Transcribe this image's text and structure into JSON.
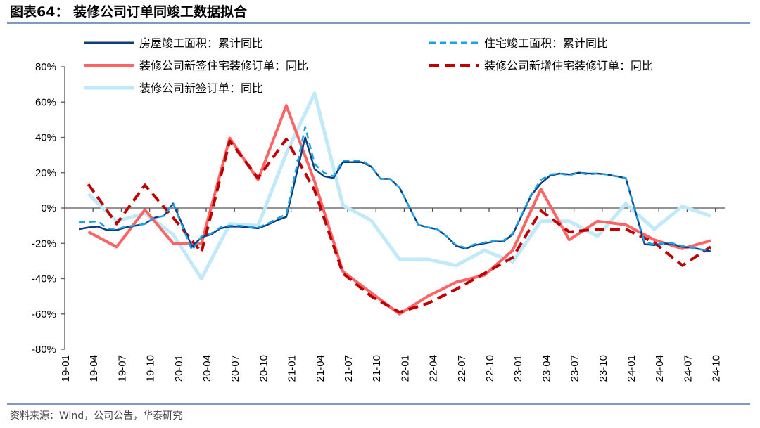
{
  "title": "图表64：  装修公司订单同竣工数据拟合",
  "source": "资料来源：Wind，公司公告，华泰研究",
  "colors": {
    "rule": "#2f5fa0"
  },
  "chart_data": {
    "type": "line",
    "ylim": [
      -80,
      80
    ],
    "yticks": [
      80,
      60,
      40,
      20,
      0,
      -20,
      -40,
      -60,
      -80
    ],
    "ytick_labels": [
      "80%",
      "60%",
      "40%",
      "20%",
      "0%",
      "-20%",
      "-40%",
      "-60%",
      "-80%"
    ],
    "xtick_labels": [
      "19-01",
      "19-04",
      "19-07",
      "19-10",
      "20-01",
      "20-04",
      "20-07",
      "20-10",
      "21-01",
      "21-04",
      "21-07",
      "21-10",
      "22-01",
      "22-04",
      "22-07",
      "22-10",
      "23-01",
      "23-04",
      "23-07",
      "23-10",
      "24-01",
      "24-04",
      "24-07",
      "24-10"
    ],
    "legend_position": "top",
    "grid": false,
    "monthly_x": [
      "19-02",
      "19-03",
      "19-04",
      "19-05",
      "19-06",
      "19-07",
      "19-08",
      "19-09",
      "19-10",
      "19-11",
      "19-12",
      "20-02",
      "20-03",
      "20-04",
      "20-05",
      "20-06",
      "20-07",
      "20-08",
      "20-09",
      "20-10",
      "20-11",
      "20-12",
      "21-02",
      "21-03",
      "21-04",
      "21-05",
      "21-06",
      "21-07",
      "21-08",
      "21-09",
      "21-10",
      "21-11",
      "21-12",
      "22-02",
      "22-03",
      "22-04",
      "22-05",
      "22-06",
      "22-07",
      "22-08",
      "22-09",
      "22-10",
      "22-11",
      "22-12",
      "23-02",
      "23-03",
      "23-04",
      "23-05",
      "23-06",
      "23-07",
      "23-08",
      "23-09",
      "23-10",
      "23-11",
      "23-12",
      "24-02",
      "24-03",
      "24-04",
      "24-05",
      "24-06",
      "24-07",
      "24-08",
      "24-09"
    ],
    "quarterly_x": [
      "19-03",
      "19-06",
      "19-09",
      "19-12",
      "20-03",
      "20-06",
      "20-09",
      "20-12",
      "21-03",
      "21-06",
      "21-09",
      "21-12",
      "22-03",
      "22-06",
      "22-09",
      "22-12",
      "23-03",
      "23-06",
      "23-09",
      "23-12",
      "24-03",
      "24-06",
      "24-09"
    ],
    "series": [
      {
        "name": "房屋竣工面积：累计同比",
        "freq": "monthly",
        "color": "#0b3c7d",
        "dash": false,
        "width": 2.5,
        "values": [
          -12,
          -11,
          -10.5,
          -12.5,
          -12.5,
          -11,
          -10,
          -9,
          -5.5,
          -4.5,
          2.5,
          -22,
          -16.5,
          -15,
          -11.5,
          -10.5,
          -10.5,
          -11,
          -11.5,
          -9.5,
          -7,
          -5,
          40,
          22,
          18,
          17,
          26,
          26,
          26,
          23.5,
          16.5,
          16.5,
          11.5,
          -9.5,
          -11,
          -12,
          -16,
          -21.5,
          -23,
          -21,
          -20,
          -19,
          -19,
          -15,
          7.5,
          14,
          18.5,
          19.5,
          19,
          20,
          19.5,
          19.5,
          19,
          18,
          17,
          -20.5,
          -21,
          -20,
          -20.5,
          -22,
          -22.5,
          -23.5,
          -24.5
        ]
      },
      {
        "name": "住宅竣工面积：累计同比",
        "freq": "monthly",
        "color": "#1aa3e8",
        "dash": true,
        "width": 2.5,
        "values": [
          -8,
          -8,
          -7.5,
          -11.5,
          -12,
          -10.5,
          -10,
          -9,
          -5.5,
          -4.5,
          2.5,
          -24,
          -16,
          -14.5,
          -11,
          -10,
          -10,
          -10.5,
          -11,
          -9,
          -6,
          -3.5,
          46,
          25,
          20,
          18,
          27,
          27,
          27,
          23.5,
          16.5,
          16.5,
          11.5,
          -9.5,
          -11,
          -12,
          -16,
          -21,
          -22.5,
          -20.5,
          -19.5,
          -18.5,
          -18.5,
          -14.5,
          8,
          16,
          19,
          19.5,
          18.5,
          20,
          19,
          19.5,
          19,
          18,
          17,
          -19.5,
          -20.5,
          -20,
          -20,
          -21.5,
          -22.5,
          -23.5,
          -24
        ]
      },
      {
        "name": "装修公司新签住宅装修订单：同比",
        "freq": "quarterly",
        "color": "#ff6464",
        "dash": false,
        "width": 4,
        "values": [
          -13.5,
          -22,
          -1,
          -20,
          -20,
          39.6,
          16,
          58,
          15,
          -36,
          -48,
          -60,
          -50,
          -42,
          -38,
          -24,
          10.7,
          -18,
          -7.5,
          -9.5,
          -18,
          -23,
          -18.5
        ]
      },
      {
        "name": "装修公司新增住宅装修订单：同比",
        "freq": "quarterly",
        "color": "#c00000",
        "dash": true,
        "width": 4,
        "values": [
          13.5,
          -9,
          13,
          -5.5,
          -25,
          38,
          17,
          39,
          10,
          -37,
          -50,
          -59,
          -54,
          -46,
          -37,
          -28,
          -1.5,
          -13.5,
          -12,
          -12,
          -19.5,
          -32.5,
          -22
        ]
      },
      {
        "name": "装修公司新签订单：同比",
        "freq": "quarterly",
        "color": "#c2e9f9",
        "dash": false,
        "width": 5,
        "values": [
          8,
          -7.5,
          -3,
          -15,
          -40,
          -9,
          -10,
          31,
          65,
          1.5,
          -7,
          -29,
          -29,
          -32.5,
          -24,
          -30.5,
          -7.5,
          -7.5,
          -16,
          2.5,
          -12,
          1,
          -4.5
        ]
      }
    ]
  }
}
